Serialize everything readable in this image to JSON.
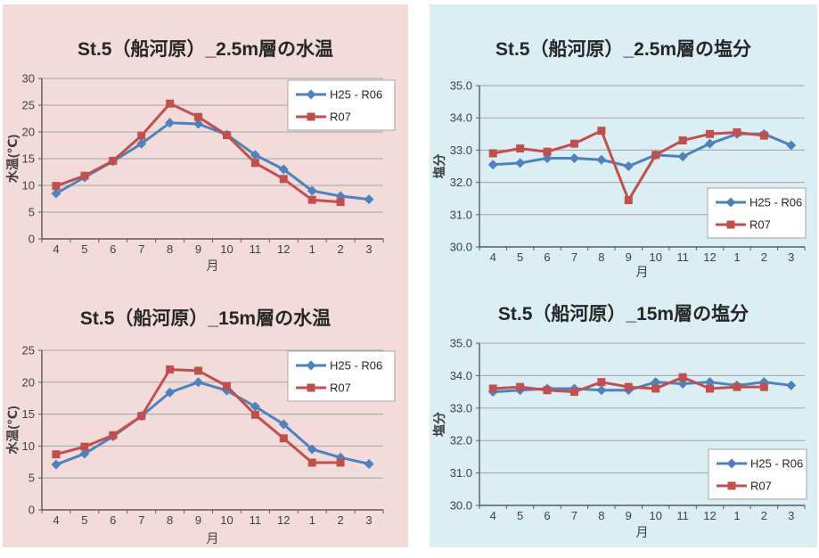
{
  "panels": {
    "left_name": "water-temperature-charts",
    "right_name": "salinity-charts",
    "left_bg": "#F2DCDB",
    "right_bg": "#DAEEF3"
  },
  "colors": {
    "series_blue": "#4F81BD",
    "series_red": "#C0504D",
    "gridline": "#A3A3A3",
    "axis": "#595959",
    "tick_text": "#404040",
    "title_text": "#262626",
    "legend_border": "#A6A6A6",
    "legend_bg": "#FFFFFF"
  },
  "chart_data": [
    {
      "type": "line",
      "title": "St.5（船河原）_2.5m層の水温",
      "xlabel": "月",
      "ylabel": "水温(℃)",
      "ylim": [
        0,
        30
      ],
      "yticks": [
        0,
        5,
        10,
        15,
        20,
        25,
        30
      ],
      "ytick_labels": [
        "0",
        "5",
        "10",
        "15",
        "20",
        "25",
        "30"
      ],
      "grid": true,
      "legend_position": "top-right",
      "categories": [
        "4",
        "5",
        "6",
        "7",
        "8",
        "9",
        "10",
        "11",
        "12",
        "1",
        "2",
        "3"
      ],
      "series": [
        {
          "name": "H25 - R06",
          "color": "#4F81BD",
          "marker": "diamond",
          "values": [
            8.5,
            11.5,
            14.5,
            17.8,
            21.7,
            21.5,
            19.5,
            15.7,
            13.0,
            9.0,
            8.0,
            7.4
          ]
        },
        {
          "name": "R07",
          "color": "#C0504D",
          "marker": "square",
          "values": [
            9.9,
            11.8,
            14.6,
            19.3,
            25.3,
            22.8,
            19.4,
            14.2,
            11.2,
            7.3,
            6.9,
            null
          ]
        }
      ]
    },
    {
      "type": "line",
      "title": "St.5（船河原）_15m層の水温",
      "xlabel": "月",
      "ylabel": "水温(℃)",
      "ylim": [
        0,
        25
      ],
      "yticks": [
        0,
        5,
        10,
        15,
        20,
        25
      ],
      "ytick_labels": [
        "0",
        "5",
        "10",
        "15",
        "20",
        "25"
      ],
      "grid": true,
      "legend_position": "top-right",
      "categories": [
        "4",
        "5",
        "6",
        "7",
        "8",
        "9",
        "10",
        "11",
        "12",
        "1",
        "2",
        "3"
      ],
      "series": [
        {
          "name": "H25 - R06",
          "color": "#4F81BD",
          "marker": "diamond",
          "values": [
            7.1,
            8.8,
            11.5,
            14.7,
            18.4,
            20.0,
            18.7,
            16.2,
            13.4,
            9.5,
            8.2,
            7.2
          ]
        },
        {
          "name": "R07",
          "color": "#C0504D",
          "marker": "square",
          "values": [
            8.7,
            9.9,
            11.7,
            14.7,
            22.0,
            21.8,
            19.4,
            14.9,
            11.2,
            7.4,
            7.4,
            null
          ]
        }
      ]
    },
    {
      "type": "line",
      "title": "St.5（船河原）_2.5m層の塩分",
      "xlabel": "月",
      "ylabel": "塩分",
      "ylim": [
        30,
        35
      ],
      "yticks": [
        30,
        31,
        32,
        33,
        34,
        35
      ],
      "ytick_labels": [
        "30.0",
        "31.0",
        "32.0",
        "33.0",
        "34.0",
        "35.0"
      ],
      "grid": true,
      "legend_position": "bottom-right",
      "categories": [
        "4",
        "5",
        "6",
        "7",
        "8",
        "9",
        "10",
        "11",
        "12",
        "1",
        "2",
        "3"
      ],
      "series": [
        {
          "name": "H25 - R06",
          "color": "#4F81BD",
          "marker": "diamond",
          "values": [
            32.55,
            32.6,
            32.75,
            32.75,
            32.7,
            32.5,
            32.85,
            32.8,
            33.2,
            33.5,
            33.5,
            33.15
          ]
        },
        {
          "name": "R07",
          "color": "#C0504D",
          "marker": "square",
          "values": [
            32.9,
            33.05,
            32.95,
            33.2,
            33.6,
            31.45,
            32.85,
            33.3,
            33.5,
            33.55,
            33.45,
            null
          ]
        }
      ]
    },
    {
      "type": "line",
      "title": "St.5（船河原）_15m層の塩分",
      "xlabel": "月",
      "ylabel": "塩分",
      "ylim": [
        30,
        35
      ],
      "yticks": [
        30,
        31,
        32,
        33,
        34,
        35
      ],
      "ytick_labels": [
        "30.0",
        "31.0",
        "32.0",
        "33.0",
        "34.0",
        "35.0"
      ],
      "grid": true,
      "legend_position": "bottom-right",
      "categories": [
        "4",
        "5",
        "6",
        "7",
        "8",
        "9",
        "10",
        "11",
        "12",
        "1",
        "2",
        "3"
      ],
      "series": [
        {
          "name": "H25 - R06",
          "color": "#4F81BD",
          "marker": "diamond",
          "values": [
            33.5,
            33.55,
            33.6,
            33.6,
            33.55,
            33.55,
            33.8,
            33.75,
            33.8,
            33.7,
            33.8,
            33.7
          ]
        },
        {
          "name": "R07",
          "color": "#C0504D",
          "marker": "square",
          "values": [
            33.6,
            33.65,
            33.55,
            33.5,
            33.8,
            33.65,
            33.6,
            33.95,
            33.6,
            33.65,
            33.65,
            null
          ]
        }
      ]
    }
  ]
}
